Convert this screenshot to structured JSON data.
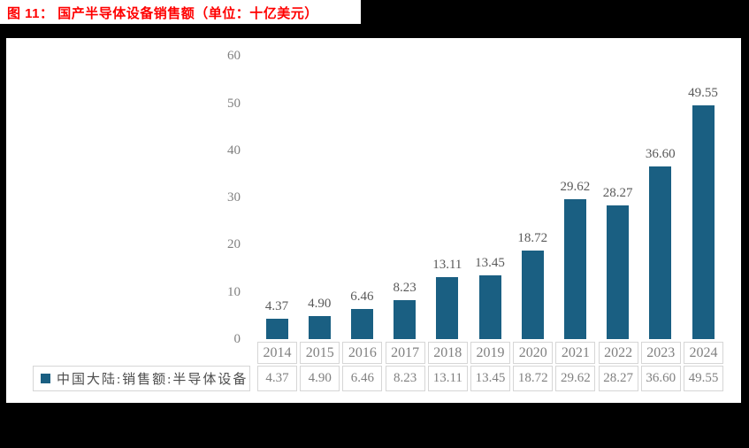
{
  "title": "图 11：  国产半导体设备销售额（单位：十亿美元）",
  "colors": {
    "title": "#FF0000",
    "bar": "#1A5F82",
    "axis_text": "#808080",
    "data_label_text": "#595959",
    "table_border": "#d6d6d6",
    "page_background": "#000000",
    "panel_background": "#ffffff"
  },
  "chart_data": {
    "type": "bar",
    "title": "图 11：  国产半导体设备销售额（单位：十亿美元）",
    "unit": "十亿美元",
    "categories": [
      "2014",
      "2015",
      "2016",
      "2017",
      "2018",
      "2019",
      "2020",
      "2021",
      "2022",
      "2023",
      "2024"
    ],
    "values": [
      4.37,
      4.9,
      6.46,
      8.23,
      13.11,
      13.45,
      18.72,
      29.62,
      28.27,
      36.6,
      49.55
    ],
    "value_labels": [
      "4.37",
      "4.90",
      "6.46",
      "8.23",
      "13.11",
      "13.45",
      "18.72",
      "29.62",
      "28.27",
      "36.60",
      "49.55"
    ],
    "series": [
      {
        "name": "中国大陆:销售额:半导体设备",
        "values": [
          4.37,
          4.9,
          6.46,
          8.23,
          13.11,
          13.45,
          18.72,
          29.62,
          28.27,
          36.6,
          49.55
        ]
      }
    ],
    "xlabel": "",
    "ylabel": "",
    "ylim": [
      0,
      60
    ],
    "yticks": [
      0,
      10,
      20,
      30,
      40,
      50,
      60
    ],
    "grid": false,
    "legend_position": "bottom-data-table",
    "data_labels_shown": true
  }
}
